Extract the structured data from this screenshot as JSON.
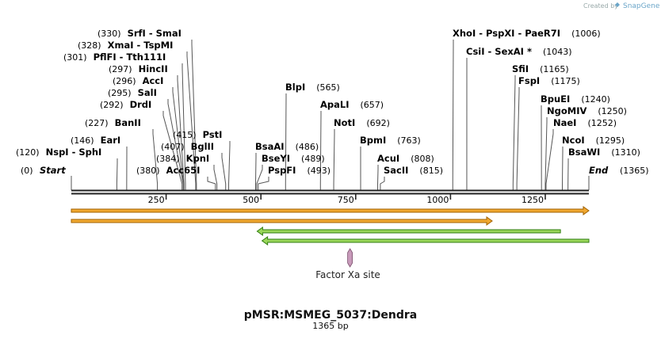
{
  "credit": {
    "created_by": "Created by",
    "brand": "SnapGene",
    "icon": "snapgene-logo-icon"
  },
  "map": {
    "name": "pMSR:MSMEG_5037:Dendra",
    "length_label": "1365 bp",
    "length_bp": 1365,
    "ticks": [
      {
        "bp": 250,
        "label": "250"
      },
      {
        "bp": 500,
        "label": "500"
      },
      {
        "bp": 750,
        "label": "750"
      },
      {
        "bp": 1000,
        "label": "1000"
      },
      {
        "bp": 1250,
        "label": "1250"
      }
    ],
    "start_label": {
      "name": "Start",
      "pos": "(0)",
      "bp": 0
    },
    "end_label": {
      "name": "End",
      "pos": "(1365)",
      "bp": 1365
    },
    "sites": [
      {
        "name": "SrfI  - SmaI",
        "pos": "(330)",
        "bp": 330
      },
      {
        "name": "XmaI  - TspMI",
        "pos": "(328)",
        "bp": 328
      },
      {
        "name": "PflFI  - Tth111I",
        "pos": "(301)",
        "bp": 301
      },
      {
        "name": "HincII",
        "pos": "(297)",
        "bp": 297
      },
      {
        "name": "AccI",
        "pos": "(296)",
        "bp": 296
      },
      {
        "name": "SalI",
        "pos": "(295)",
        "bp": 295
      },
      {
        "name": "DrdI",
        "pos": "(292)",
        "bp": 292
      },
      {
        "name": "BanII",
        "pos": "(227)",
        "bp": 227
      },
      {
        "name": "EarI",
        "pos": "(146)",
        "bp": 146
      },
      {
        "name": "NspI  - SphI",
        "pos": "(120)",
        "bp": 120
      },
      {
        "name": "PstI",
        "pos": "(415)",
        "bp": 415
      },
      {
        "name": "BglII",
        "pos": "(407)",
        "bp": 407
      },
      {
        "name": "KpnI",
        "pos": "(384)",
        "bp": 384
      },
      {
        "name": "Acc65I",
        "pos": "(380)",
        "bp": 380
      },
      {
        "name": "BlpI",
        "pos": "(565)",
        "bp": 565
      },
      {
        "name": "ApaLI",
        "pos": "(657)",
        "bp": 657
      },
      {
        "name": "NotI",
        "pos": "(692)",
        "bp": 692
      },
      {
        "name": "BpmI",
        "pos": "(763)",
        "bp": 763
      },
      {
        "name": "BsaAI",
        "pos": "(486)",
        "bp": 486
      },
      {
        "name": "BseYI",
        "pos": "(489)",
        "bp": 489
      },
      {
        "name": "PspFI",
        "pos": "(493)",
        "bp": 493
      },
      {
        "name": "AcuI",
        "pos": "(808)",
        "bp": 808
      },
      {
        "name": "SacII",
        "pos": "(815)",
        "bp": 815
      },
      {
        "name": "XhoI  - PspXI  - PaeR7I",
        "pos": "(1006)",
        "bp": 1006
      },
      {
        "name": "CsiI  - SexAI *",
        "pos": "(1043)",
        "bp": 1043
      },
      {
        "name": "SfiI",
        "pos": "(1165)",
        "bp": 1165
      },
      {
        "name": "FspI",
        "pos": "(1175)",
        "bp": 1175
      },
      {
        "name": "BpuEI",
        "pos": "(1240)",
        "bp": 1240
      },
      {
        "name": "NgoMIV",
        "pos": "(1250)",
        "bp": 1250
      },
      {
        "name": "NaeI",
        "pos": "(1252)",
        "bp": 1252
      },
      {
        "name": "NcoI",
        "pos": "(1295)",
        "bp": 1295
      },
      {
        "name": "BsaWI",
        "pos": "(1310)",
        "bp": 1310
      }
    ],
    "features": [
      {
        "name": "",
        "start_bp": 0,
        "end_bp": 1365,
        "direction": "forward",
        "color": "#f0a830",
        "edge": "#a06000"
      },
      {
        "name": "",
        "start_bp": 0,
        "end_bp": 1110,
        "direction": "forward",
        "color": "#f0a830",
        "edge": "#a06000"
      },
      {
        "name": "",
        "start_bp": 490,
        "end_bp": 1290,
        "direction": "reverse",
        "color": "#9ad65a",
        "edge": "#2f7d10"
      },
      {
        "name": "",
        "start_bp": 503,
        "end_bp": 1365,
        "direction": "reverse",
        "color": "#9ad65a",
        "edge": "#2f7d10"
      }
    ],
    "site_marker": {
      "label": "Factor Xa site",
      "bp": 735,
      "color": "#c89aba"
    }
  }
}
